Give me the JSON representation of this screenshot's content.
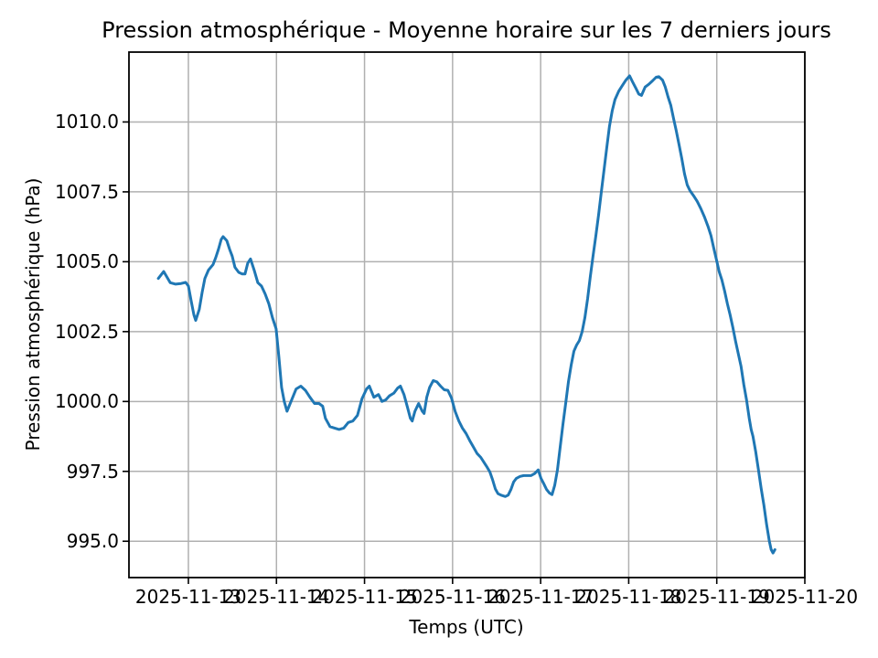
{
  "chart_data": {
    "type": "line",
    "title": "Pression atmosphérique - Moyenne horaire sur les 7 derniers jours",
    "xlabel": "Temps (UTC)",
    "ylabel": "Pression atmosphérique (hPa)",
    "legend": null,
    "grid": true,
    "grid_color": "#b0b0b0",
    "line_color": "#1f77b4",
    "line_width": 3,
    "background_color": "#ffffff",
    "x_tick_labels": [
      "2025-11-13",
      "2025-11-14",
      "2025-11-15",
      "2025-11-16",
      "2025-11-17",
      "2025-11-18",
      "2025-11-19",
      "2025-11-20"
    ],
    "x_tick_days": [
      0,
      1,
      2,
      3,
      4,
      5,
      6,
      7
    ],
    "y_ticks": [
      995.0,
      997.5,
      1000.0,
      1002.5,
      1005.0,
      1007.5,
      1010.0
    ],
    "x_range_days": [
      -0.675,
      7.0
    ],
    "y_range": [
      993.7,
      1012.5
    ],
    "x_unit": "days relative to 2025-11-13 00:00 UTC",
    "y_unit": "hPa",
    "points": [
      [
        -0.342,
        1004.4
      ],
      [
        -0.28,
        1004.65
      ],
      [
        -0.207,
        1004.25
      ],
      [
        -0.145,
        1004.2
      ],
      [
        -0.083,
        1004.22
      ],
      [
        -0.031,
        1004.26
      ],
      [
        0.0,
        1004.13
      ],
      [
        0.031,
        1003.6
      ],
      [
        0.062,
        1003.1
      ],
      [
        0.083,
        1002.9
      ],
      [
        0.124,
        1003.3
      ],
      [
        0.156,
        1003.9
      ],
      [
        0.187,
        1004.4
      ],
      [
        0.228,
        1004.7
      ],
      [
        0.28,
        1004.9
      ],
      [
        0.311,
        1005.15
      ],
      [
        0.342,
        1005.45
      ],
      [
        0.373,
        1005.8
      ],
      [
        0.394,
        1005.9
      ],
      [
        0.436,
        1005.75
      ],
      [
        0.467,
        1005.45
      ],
      [
        0.498,
        1005.2
      ],
      [
        0.529,
        1004.8
      ],
      [
        0.571,
        1004.62
      ],
      [
        0.612,
        1004.56
      ],
      [
        0.643,
        1004.56
      ],
      [
        0.674,
        1004.95
      ],
      [
        0.705,
        1005.1
      ],
      [
        0.747,
        1004.7
      ],
      [
        0.788,
        1004.25
      ],
      [
        0.83,
        1004.13
      ],
      [
        0.871,
        1003.85
      ],
      [
        0.913,
        1003.5
      ],
      [
        0.954,
        1003.0
      ],
      [
        0.996,
        1002.6
      ],
      [
        1.027,
        1001.6
      ],
      [
        1.058,
        1000.5
      ],
      [
        1.089,
        1000.0
      ],
      [
        1.12,
        999.65
      ],
      [
        1.172,
        1000.05
      ],
      [
        1.224,
        1000.45
      ],
      [
        1.276,
        1000.55
      ],
      [
        1.328,
        1000.4
      ],
      [
        1.38,
        1000.15
      ],
      [
        1.432,
        999.93
      ],
      [
        1.483,
        999.93
      ],
      [
        1.525,
        999.83
      ],
      [
        1.556,
        999.4
      ],
      [
        1.608,
        999.1
      ],
      [
        1.66,
        999.05
      ],
      [
        1.712,
        999.0
      ],
      [
        1.764,
        999.05
      ],
      [
        1.815,
        999.25
      ],
      [
        1.867,
        999.3
      ],
      [
        1.919,
        999.5
      ],
      [
        1.971,
        1000.1
      ],
      [
        2.023,
        1000.45
      ],
      [
        2.054,
        1000.55
      ],
      [
        2.106,
        1000.15
      ],
      [
        2.158,
        1000.25
      ],
      [
        2.199,
        1000.0
      ],
      [
        2.241,
        1000.06
      ],
      [
        2.282,
        1000.2
      ],
      [
        2.334,
        1000.3
      ],
      [
        2.376,
        1000.48
      ],
      [
        2.407,
        1000.55
      ],
      [
        2.448,
        1000.25
      ],
      [
        2.49,
        999.77
      ],
      [
        2.521,
        999.4
      ],
      [
        2.541,
        999.3
      ],
      [
        2.573,
        999.65
      ],
      [
        2.614,
        999.93
      ],
      [
        2.656,
        999.65
      ],
      [
        2.676,
        999.57
      ],
      [
        2.707,
        1000.15
      ],
      [
        2.739,
        1000.5
      ],
      [
        2.78,
        1000.75
      ],
      [
        2.822,
        1000.7
      ],
      [
        2.863,
        1000.55
      ],
      [
        2.905,
        1000.42
      ],
      [
        2.946,
        1000.4
      ],
      [
        2.988,
        1000.12
      ],
      [
        3.029,
        999.65
      ],
      [
        3.071,
        999.3
      ],
      [
        3.112,
        999.05
      ],
      [
        3.154,
        998.85
      ],
      [
        3.195,
        998.6
      ],
      [
        3.237,
        998.37
      ],
      [
        3.278,
        998.14
      ],
      [
        3.32,
        998.0
      ],
      [
        3.361,
        997.8
      ],
      [
        3.392,
        997.65
      ],
      [
        3.423,
        997.48
      ],
      [
        3.454,
        997.2
      ],
      [
        3.485,
        996.87
      ],
      [
        3.516,
        996.7
      ],
      [
        3.558,
        996.64
      ],
      [
        3.599,
        996.6
      ],
      [
        3.631,
        996.65
      ],
      [
        3.662,
        996.85
      ],
      [
        3.693,
        997.12
      ],
      [
        3.724,
        997.25
      ],
      [
        3.766,
        997.32
      ],
      [
        3.807,
        997.35
      ],
      [
        3.849,
        997.35
      ],
      [
        3.89,
        997.35
      ],
      [
        3.932,
        997.42
      ],
      [
        3.973,
        997.55
      ],
      [
        4.004,
        997.25
      ],
      [
        4.035,
        997.06
      ],
      [
        4.066,
        996.86
      ],
      [
        4.098,
        996.73
      ],
      [
        4.129,
        996.67
      ],
      [
        4.16,
        997.0
      ],
      [
        4.191,
        997.55
      ],
      [
        4.222,
        998.37
      ],
      [
        4.253,
        999.18
      ],
      [
        4.284,
        999.93
      ],
      [
        4.315,
        1000.7
      ],
      [
        4.346,
        1001.3
      ],
      [
        4.378,
        1001.8
      ],
      [
        4.409,
        1002.02
      ],
      [
        4.44,
        1002.18
      ],
      [
        4.471,
        1002.5
      ],
      [
        4.502,
        1003.0
      ],
      [
        4.533,
        1003.68
      ],
      [
        4.564,
        1004.46
      ],
      [
        4.595,
        1005.2
      ],
      [
        4.627,
        1005.93
      ],
      [
        4.658,
        1006.68
      ],
      [
        4.689,
        1007.5
      ],
      [
        4.72,
        1008.3
      ],
      [
        4.751,
        1009.1
      ],
      [
        4.782,
        1009.85
      ],
      [
        4.813,
        1010.4
      ],
      [
        4.844,
        1010.8
      ],
      [
        4.886,
        1011.1
      ],
      [
        4.927,
        1011.3
      ],
      [
        4.969,
        1011.5
      ],
      [
        5.01,
        1011.65
      ],
      [
        5.041,
        1011.45
      ],
      [
        5.083,
        1011.2
      ],
      [
        5.114,
        1011.0
      ],
      [
        5.145,
        1010.95
      ],
      [
        5.187,
        1011.25
      ],
      [
        5.228,
        1011.35
      ],
      [
        5.27,
        1011.47
      ],
      [
        5.311,
        1011.6
      ],
      [
        5.342,
        1011.62
      ],
      [
        5.384,
        1011.5
      ],
      [
        5.415,
        1011.25
      ],
      [
        5.446,
        1010.9
      ],
      [
        5.477,
        1010.6
      ],
      [
        5.508,
        1010.15
      ],
      [
        5.539,
        1009.7
      ],
      [
        5.571,
        1009.2
      ],
      [
        5.602,
        1008.7
      ],
      [
        5.633,
        1008.15
      ],
      [
        5.664,
        1007.75
      ],
      [
        5.695,
        1007.55
      ],
      [
        5.737,
        1007.36
      ],
      [
        5.778,
        1007.16
      ],
      [
        5.819,
        1006.9
      ],
      [
        5.861,
        1006.6
      ],
      [
        5.902,
        1006.25
      ],
      [
        5.934,
        1005.93
      ],
      [
        5.965,
        1005.5
      ],
      [
        5.996,
        1005.08
      ],
      [
        6.027,
        1004.65
      ],
      [
        6.058,
        1004.35
      ],
      [
        6.089,
        1003.95
      ],
      [
        6.12,
        1003.5
      ],
      [
        6.151,
        1003.1
      ],
      [
        6.183,
        1002.65
      ],
      [
        6.214,
        1002.15
      ],
      [
        6.245,
        1001.7
      ],
      [
        6.276,
        1001.25
      ],
      [
        6.307,
        1000.6
      ],
      [
        6.338,
        1000.05
      ],
      [
        6.369,
        999.4
      ],
      [
        6.39,
        999.0
      ],
      [
        6.411,
        998.75
      ],
      [
        6.442,
        998.2
      ],
      [
        6.473,
        997.55
      ],
      [
        6.504,
        996.9
      ],
      [
        6.535,
        996.3
      ],
      [
        6.566,
        995.6
      ],
      [
        6.597,
        995.0
      ],
      [
        6.618,
        994.7
      ],
      [
        6.639,
        994.58
      ],
      [
        6.66,
        994.7
      ]
    ]
  }
}
